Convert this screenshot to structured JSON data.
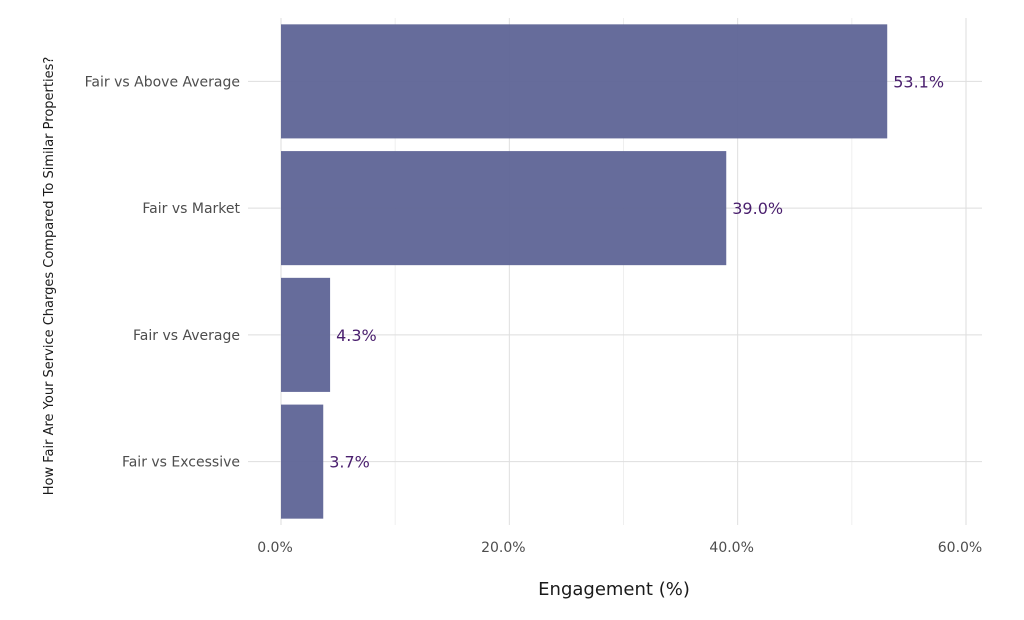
{
  "chart_data": {
    "type": "bar",
    "orientation": "horizontal",
    "categories": [
      "Fair vs Above Average",
      "Fair vs Market",
      "Fair vs Average",
      "Fair vs Excessive"
    ],
    "values": [
      53.1,
      39.0,
      4.3,
      3.7
    ],
    "data_labels": [
      "53.1%",
      "39.0%",
      "4.3%",
      "3.7%"
    ],
    "xlabel": "Engagement (%)",
    "ylabel": "How Fair Are Your Service Charges Compared To Similar Properties?",
    "xlim": [
      0,
      61.5
    ],
    "x_ticks": [
      0,
      20,
      40,
      60
    ],
    "x_tick_labels": [
      "0.0%",
      "20.0%",
      "40.0%",
      "60.0%"
    ],
    "grid": true,
    "legend": "none",
    "colors": {
      "bar": "#5e6496",
      "data_label": "#4a1f6e",
      "grid_major": "#dedede",
      "grid_minor": "#efefef"
    }
  }
}
